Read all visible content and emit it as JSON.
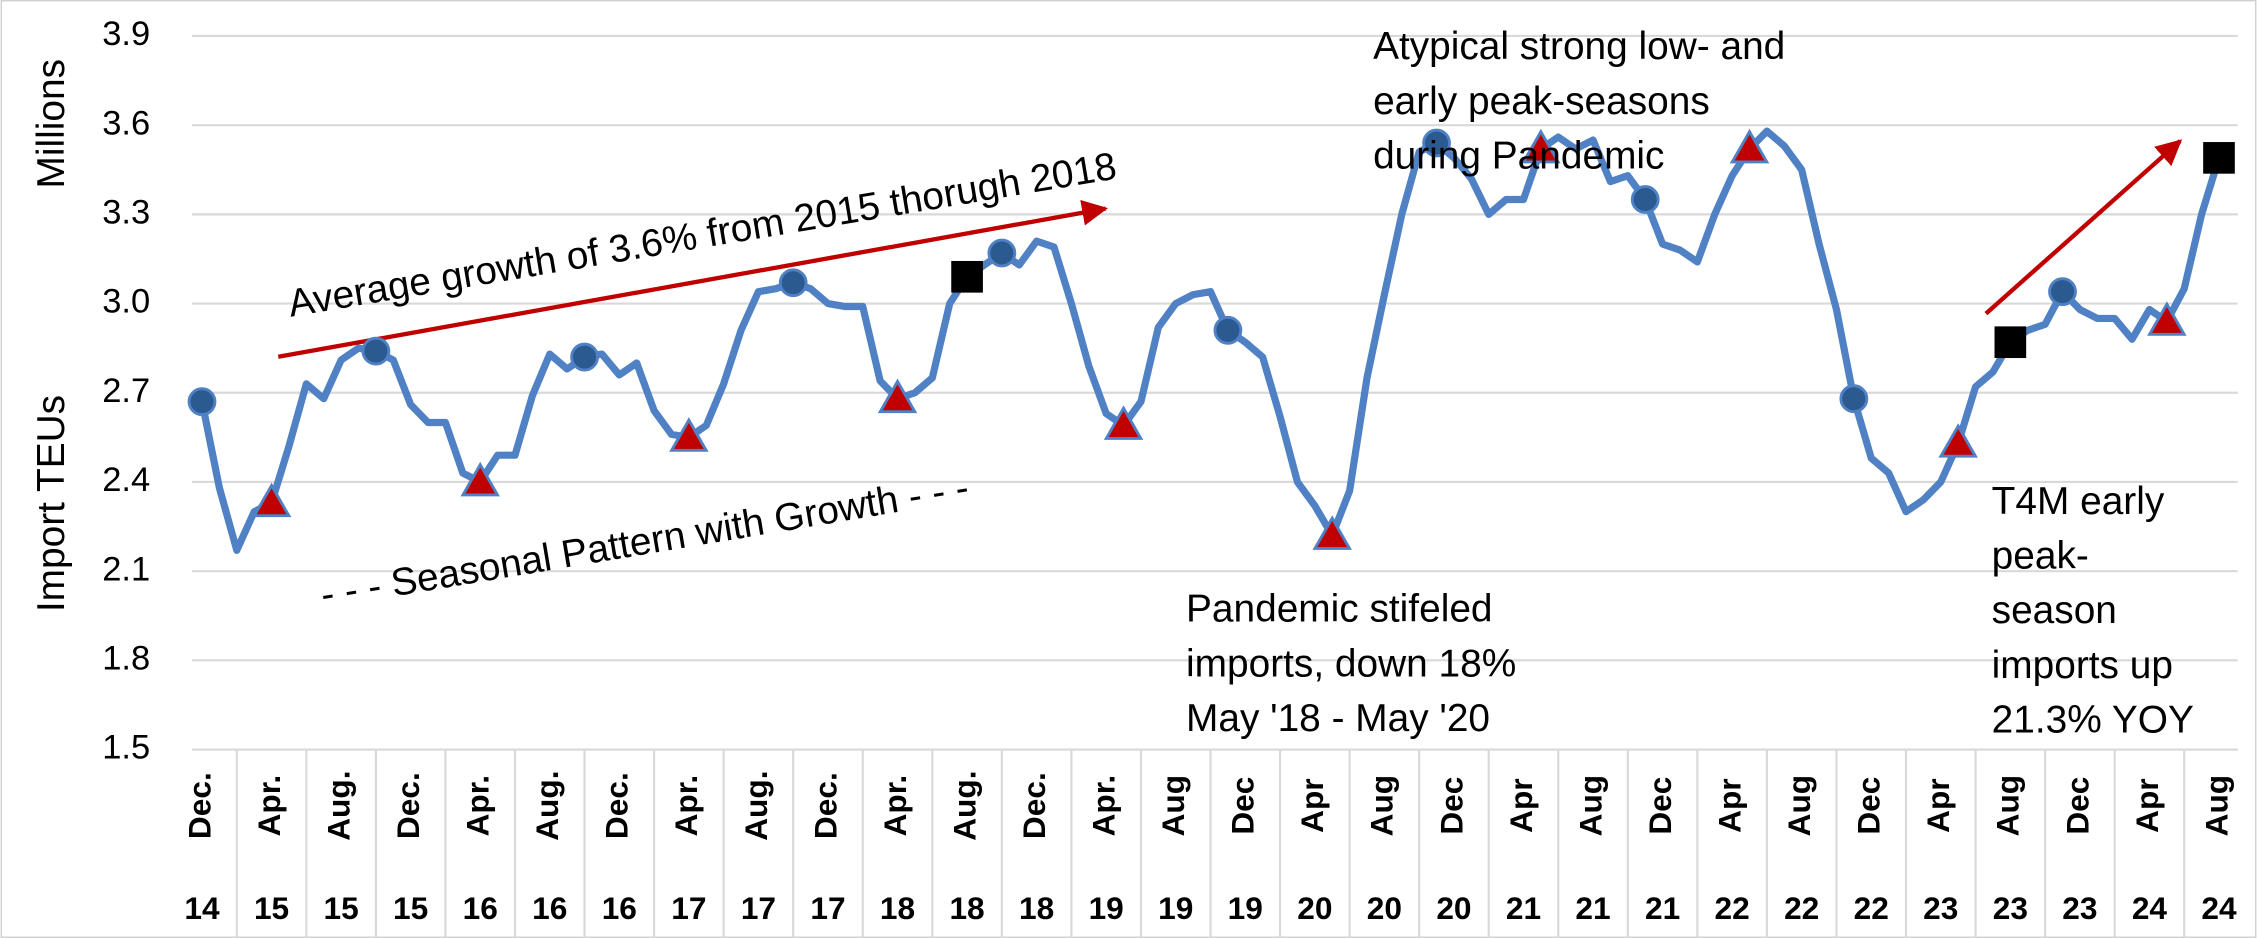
{
  "chart_data": {
    "type": "line",
    "y_label": "Import TEUs",
    "y_unit_label": "Millions",
    "ylim": [
      1.5,
      3.9
    ],
    "yticks": [
      {
        "value": 1.5,
        "label": "1.5"
      },
      {
        "value": 1.8,
        "label": "1.8"
      },
      {
        "value": 2.1,
        "label": "2.1"
      },
      {
        "value": 2.4,
        "label": "2.4"
      },
      {
        "value": 2.7,
        "label": "2.7"
      },
      {
        "value": 3.0,
        "label": "3.0"
      },
      {
        "value": 3.3,
        "label": "3.3"
      },
      {
        "value": 3.6,
        "label": "3.6"
      },
      {
        "value": 3.9,
        "label": "3.9"
      }
    ],
    "grid": true,
    "categories": [
      "Dec.",
      null,
      null,
      null,
      "Apr.",
      null,
      null,
      null,
      "Aug.",
      null,
      null,
      null,
      "Dec.",
      null,
      null,
      null,
      "Apr.",
      null,
      null,
      null,
      "Aug.",
      null,
      null,
      null,
      "Dec.",
      null,
      null,
      null,
      "Apr.",
      null,
      null,
      null,
      "Aug.",
      null,
      null,
      null,
      "Dec.",
      null,
      null,
      null,
      "Apr.",
      null,
      null,
      null,
      "Aug.",
      null,
      null,
      null,
      "Dec.",
      null,
      null,
      null,
      "Apr.",
      null,
      null,
      null,
      "Aug",
      null,
      null,
      null,
      "Dec",
      null,
      null,
      null,
      "Apr",
      null,
      null,
      null,
      "Aug",
      null,
      null,
      null,
      "Dec",
      null,
      null,
      null,
      "Apr",
      null,
      null,
      null,
      "Aug",
      null,
      null,
      null,
      "Dec",
      null,
      null,
      null,
      "Apr",
      null,
      null,
      null,
      "Aug",
      null,
      null,
      null,
      "Dec",
      null,
      null,
      null,
      "Apr",
      null,
      null,
      null,
      "Aug",
      null,
      null,
      null,
      "Dec",
      null,
      null,
      null,
      "Apr",
      null,
      null,
      null,
      "Aug"
    ],
    "category_years": [
      "14",
      null,
      null,
      null,
      "15",
      null,
      null,
      null,
      "15",
      null,
      null,
      null,
      "15",
      null,
      null,
      null,
      "16",
      null,
      null,
      null,
      "16",
      null,
      null,
      null,
      "16",
      null,
      null,
      null,
      "17",
      null,
      null,
      null,
      "17",
      null,
      null,
      null,
      "17",
      null,
      null,
      null,
      "18",
      null,
      null,
      null,
      "18",
      null,
      null,
      null,
      "18",
      null,
      null,
      null,
      "19",
      null,
      null,
      null,
      "19",
      null,
      null,
      null,
      "19",
      null,
      null,
      null,
      "20",
      null,
      null,
      null,
      "20",
      null,
      null,
      null,
      "20",
      null,
      null,
      null,
      "21",
      null,
      null,
      null,
      "21",
      null,
      null,
      null,
      "21",
      null,
      null,
      null,
      "22",
      null,
      null,
      null,
      "22",
      null,
      null,
      null,
      "22",
      null,
      null,
      null,
      "23",
      null,
      null,
      null,
      "23",
      null,
      null,
      null,
      "23",
      null,
      null,
      null,
      "24",
      null,
      null,
      null,
      "24"
    ],
    "series": [
      {
        "color": "#4f81c4",
        "values": [
          2.67,
          2.38,
          2.17,
          2.3,
          2.33,
          2.52,
          2.73,
          2.68,
          2.81,
          2.85,
          2.84,
          2.81,
          2.66,
          2.6,
          2.6,
          2.43,
          2.4,
          2.49,
          2.49,
          2.69,
          2.83,
          2.78,
          2.82,
          2.83,
          2.76,
          2.8,
          2.64,
          2.56,
          2.55,
          2.59,
          2.73,
          2.91,
          3.04,
          3.05,
          3.07,
          3.05,
          3.0,
          2.99,
          2.99,
          2.74,
          2.68,
          2.7,
          2.75,
          3.0,
          3.09,
          3.13,
          3.17,
          3.13,
          3.21,
          3.19,
          3.0,
          2.79,
          2.63,
          2.59,
          2.67,
          2.92,
          3.0,
          3.03,
          3.04,
          2.91,
          2.87,
          2.82,
          2.62,
          2.4,
          2.32,
          2.22,
          2.37,
          2.75,
          3.03,
          3.3,
          3.51,
          3.54,
          3.49,
          3.42,
          3.3,
          3.35,
          3.35,
          3.52,
          3.56,
          3.52,
          3.55,
          3.41,
          3.43,
          3.35,
          3.2,
          3.18,
          3.14,
          3.3,
          3.43,
          3.52,
          3.58,
          3.53,
          3.45,
          3.2,
          2.98,
          2.68,
          2.48,
          2.43,
          2.3,
          2.34,
          2.4,
          2.53,
          2.72,
          2.77,
          2.87,
          2.91,
          2.93,
          3.04,
          2.98,
          2.95,
          2.95,
          2.88,
          2.98,
          2.94,
          3.05,
          3.3,
          3.49
        ]
      }
    ],
    "markers": [
      {
        "shape": "circle",
        "color": "#2a5a8f",
        "indices": [
          0,
          10,
          22,
          34,
          46,
          59,
          71,
          83,
          95,
          107
        ]
      },
      {
        "shape": "triangle",
        "color": "#c00000",
        "indices": [
          4,
          16,
          28,
          40,
          53,
          65,
          77,
          89,
          101,
          113
        ]
      },
      {
        "shape": "square",
        "color": "#000000",
        "indices": [
          44,
          104,
          116
        ]
      }
    ],
    "annotations": [
      {
        "lines": [
          "Average growth of 3.6% from 2015 thorugh 2018"
        ]
      },
      {
        "lines": [
          "- - -  Seasonal Pattern with Growth -  - -"
        ]
      },
      {
        "lines": [
          "Pandemic stifeled",
          "imports, down 18%",
          "May '18 - May '20"
        ]
      },
      {
        "lines": [
          "Atypical strong low- and",
          "early peak-seasons",
          "during Pandemic"
        ]
      },
      {
        "lines": [
          "T4M early",
          "peak-",
          "season",
          "imports up",
          "21.3% YOY"
        ]
      }
    ]
  }
}
